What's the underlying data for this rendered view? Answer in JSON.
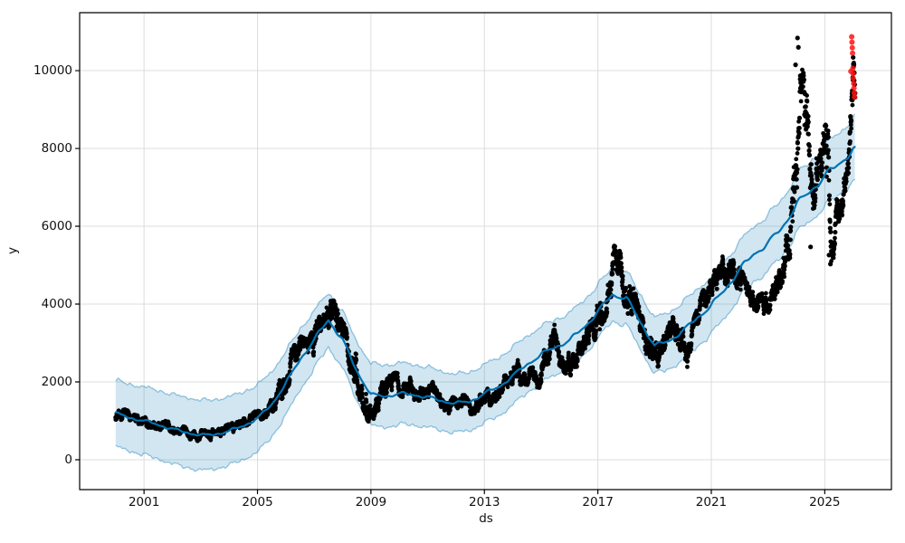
{
  "chart_data": {
    "type": "scatter",
    "title": "",
    "xlabel": "ds",
    "ylabel": "y",
    "xlim": [
      1998.73,
      2027.35
    ],
    "ylim": [
      -768,
      11490
    ],
    "xticks": [
      2001,
      2005,
      2009,
      2013,
      2017,
      2021,
      2025
    ],
    "yticks": [
      0,
      2000,
      4000,
      6000,
      8000,
      10000
    ],
    "grid": true,
    "legend_position": "none",
    "colors": {
      "observed": "#000000",
      "trend": "#0072B2",
      "band_fill": "rgba(0,114,178,0.18)",
      "band_edge": "rgba(0,114,178,0.40)",
      "anomaly": "rgba(255,18,18,0.85)",
      "grid": "#dcdcdc",
      "spine": "#000000",
      "background": "#ffffff"
    },
    "trend": {
      "x": [
        2000,
        2000.5,
        2001,
        2001.5,
        2002,
        2002.5,
        2003,
        2003.5,
        2004,
        2004.5,
        2005,
        2005.5,
        2006,
        2006.5,
        2007,
        2007.5,
        2008,
        2008.5,
        2009,
        2009.5,
        2010,
        2010.5,
        2011,
        2011.5,
        2012,
        2012.5,
        2013,
        2013.5,
        2014,
        2014.5,
        2015,
        2015.5,
        2016,
        2016.5,
        2017,
        2017.5,
        2018,
        2018.5,
        2019,
        2019.5,
        2020,
        2020.5,
        2021,
        2021.5,
        2022,
        2022.5,
        2023,
        2023.5,
        2024,
        2024.5,
        2025,
        2025.5,
        2026
      ],
      "y": [
        1190,
        1080,
        1000,
        900,
        790,
        700,
        630,
        650,
        740,
        870,
        1060,
        1420,
        1960,
        2580,
        3080,
        3600,
        3080,
        2280,
        1670,
        1630,
        1700,
        1670,
        1610,
        1510,
        1450,
        1500,
        1700,
        1870,
        2150,
        2450,
        2700,
        2900,
        3060,
        3400,
        3790,
        4250,
        4150,
        3550,
        2920,
        3060,
        3300,
        3650,
        3960,
        4400,
        4880,
        5300,
        5550,
        5980,
        6550,
        6920,
        7280,
        7620,
        7950
      ]
    },
    "uncertainty_half_width": [
      850,
      860,
      870,
      880,
      890,
      900,
      900,
      890,
      880,
      870,
      860,
      840,
      820,
      780,
      740,
      700,
      720,
      760,
      800,
      800,
      790,
      780,
      770,
      760,
      750,
      750,
      750,
      750,
      740,
      730,
      720,
      710,
      700,
      700,
      690,
      680,
      690,
      700,
      720,
      730,
      740,
      740,
      730,
      720,
      710,
      710,
      720,
      730,
      740,
      760,
      780,
      800,
      810
    ],
    "observed_envelope": {
      "x": [
        2000.0,
        2000.35,
        2000.7,
        2001.1,
        2001.5,
        2001.9,
        2002.3,
        2002.7,
        2003.1,
        2003.5,
        2003.9,
        2004.3,
        2004.7,
        2005.1,
        2005.5,
        2005.9,
        2006.2,
        2006.5,
        2006.8,
        2007.1,
        2007.45,
        2007.7,
        2008.0,
        2008.3,
        2008.6,
        2008.95,
        2009.2,
        2009.5,
        2009.9,
        2010.3,
        2010.7,
        2011.0,
        2011.4,
        2011.8,
        2012.2,
        2012.6,
        2013.0,
        2013.4,
        2013.8,
        2014.2,
        2014.6,
        2014.95,
        2015.2,
        2015.45,
        2015.7,
        2016.0,
        2016.4,
        2016.8,
        2017.2,
        2017.55,
        2017.8,
        2018.1,
        2018.4,
        2018.7,
        2019.0,
        2019.3,
        2019.6,
        2019.9,
        2020.2,
        2020.5,
        2020.8,
        2021.1,
        2021.4,
        2021.7,
        2022.0,
        2022.3,
        2022.6,
        2022.9,
        2023.2,
        2023.5,
        2023.8,
        2024.0,
        2024.15,
        2024.3,
        2024.45,
        2024.6,
        2024.8,
        2025.0,
        2025.12,
        2025.3,
        2025.5,
        2025.7,
        2025.9,
        2026.0,
        2026.05
      ],
      "lo": [
        900,
        950,
        850,
        830,
        780,
        680,
        580,
        500,
        450,
        500,
        600,
        700,
        820,
        1000,
        1150,
        1550,
        2050,
        2400,
        2300,
        2750,
        3300,
        3100,
        2600,
        2200,
        1500,
        850,
        1150,
        1600,
        1650,
        1550,
        1500,
        1600,
        1400,
        1100,
        1200,
        1150,
        1300,
        1450,
        1650,
        1900,
        1900,
        1800,
        2300,
        2800,
        2300,
        2100,
        2300,
        2900,
        3400,
        4350,
        4200,
        3600,
        3000,
        2400,
        2060,
        2600,
        2900,
        2800,
        2280,
        3000,
        3600,
        4300,
        4500,
        4400,
        4200,
        3700,
        3400,
        3600,
        4000,
        4500,
        5200,
        6200,
        7400,
        7700,
        6800,
        6000,
        6300,
        6800,
        5100,
        5000,
        5800,
        6400,
        7300,
        8700,
        8800
      ],
      "hi": [
        1260,
        1300,
        1150,
        1120,
        1080,
        980,
        880,
        800,
        760,
        800,
        900,
        1000,
        1130,
        1350,
        1650,
        2250,
        2850,
        3200,
        3100,
        3700,
        4350,
        4100,
        3600,
        3100,
        2600,
        1700,
        1850,
        2250,
        2250,
        2150,
        2050,
        2100,
        1900,
        1600,
        1700,
        1650,
        1800,
        1950,
        2250,
        2600,
        2500,
        2400,
        3100,
        3560,
        3100,
        2900,
        3050,
        3700,
        4600,
        5550,
        5400,
        4900,
        4100,
        3400,
        2950,
        3500,
        3700,
        3600,
        3300,
        3900,
        4600,
        5200,
        5300,
        5200,
        5000,
        4500,
        4200,
        4400,
        4900,
        5600,
        6900,
        8800,
        10100,
        10100,
        8600,
        8300,
        7800,
        8700,
        8600,
        6400,
        7000,
        7600,
        8800,
        10400,
        10300
      ]
    },
    "observed_outliers": [
      [
        2024.04,
        10840
      ],
      [
        2024.07,
        10600
      ],
      [
        2023.97,
        10150
      ],
      [
        2024.5,
        5470
      ],
      [
        2025.15,
        5260
      ],
      [
        2025.2,
        5030
      ]
    ],
    "anomalies": {
      "x": [
        2025.92,
        2025.95,
        2025.96,
        2025.97,
        2025.98,
        2025.99,
        2026.0,
        2026.0,
        2026.02,
        2026.03,
        2026.04,
        2026.05
      ],
      "y": [
        9980,
        10870,
        10730,
        10590,
        10450,
        10060,
        9930,
        9800,
        9670,
        9550,
        9430,
        9320
      ]
    }
  }
}
